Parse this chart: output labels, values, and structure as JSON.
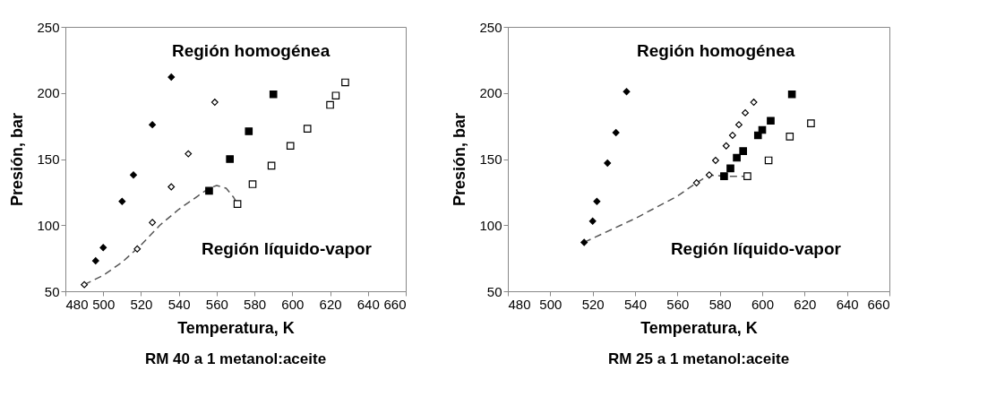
{
  "chart_data": [
    {
      "type": "scatter",
      "title": "RM 40 a 1 metanol:aceite",
      "xlabel": "Temperatura, K",
      "ylabel": "Presión, bar",
      "annotations": [
        "Región homogénea",
        "Región líquido-vapor"
      ],
      "xlim": [
        480,
        660
      ],
      "xticks": [
        480,
        500,
        520,
        540,
        560,
        580,
        600,
        620,
        640,
        660
      ],
      "ylim": [
        50,
        250
      ],
      "yticks": [
        50,
        100,
        150,
        200,
        250
      ],
      "series": [
        {
          "type": "line",
          "color": "#555555",
          "line_style": "dashed",
          "marker": "none",
          "x": [
            490,
            500,
            510,
            520,
            530,
            540,
            550,
            556,
            560,
            565,
            569,
            571
          ],
          "values": [
            55,
            62,
            72,
            85,
            100,
            112,
            122,
            128,
            130,
            128,
            121,
            116
          ]
        },
        {
          "color": "#000000",
          "marker": "diamond",
          "x": [
            496,
            500,
            510,
            516,
            526,
            536
          ],
          "values": [
            73,
            83,
            118,
            138,
            176,
            212
          ]
        },
        {
          "color": "#ffffff",
          "marker": "diamond",
          "x": [
            490,
            518,
            526,
            536,
            545,
            559
          ],
          "values": [
            55,
            82,
            102,
            129,
            154,
            193
          ]
        },
        {
          "color": "#000000",
          "marker": "square",
          "x": [
            556,
            567,
            577,
            590
          ],
          "values": [
            126,
            150,
            171,
            199
          ]
        },
        {
          "color": "#ffffff",
          "marker": "square",
          "x": [
            571,
            579,
            589,
            599,
            608,
            620,
            623,
            628
          ],
          "values": [
            116,
            131,
            145,
            160,
            173,
            191,
            198,
            208
          ]
        }
      ]
    },
    {
      "type": "scatter",
      "title": "RM 25 a 1 metanol:aceite",
      "xlabel": "Temperatura, K",
      "ylabel": "Presión, bar",
      "annotations": [
        "Región homogénea",
        "Región líquido-vapor"
      ],
      "xlim": [
        480,
        660
      ],
      "xticks": [
        480,
        500,
        520,
        540,
        560,
        580,
        600,
        620,
        640,
        660
      ],
      "ylim": [
        50,
        250
      ],
      "yticks": [
        50,
        100,
        150,
        200,
        250
      ],
      "series": [
        {
          "type": "line",
          "color": "#555555",
          "line_style": "dashed",
          "marker": "none",
          "x": [
            516,
            540,
            560,
            569,
            575,
            582,
            593
          ],
          "values": [
            87,
            105,
            122,
            132,
            138,
            137,
            137
          ]
        },
        {
          "color": "#000000",
          "marker": "diamond",
          "x": [
            516,
            520,
            522,
            527,
            531,
            536
          ],
          "values": [
            87,
            103,
            118,
            147,
            170,
            201
          ]
        },
        {
          "color": "#ffffff",
          "marker": "diamond",
          "x": [
            569,
            575,
            578,
            583,
            586,
            589,
            592,
            596
          ],
          "values": [
            132,
            138,
            149,
            160,
            168,
            176,
            185,
            193
          ]
        },
        {
          "color": "#000000",
          "marker": "square",
          "x": [
            582,
            585,
            588,
            591,
            598,
            600,
            604,
            614
          ],
          "values": [
            137,
            143,
            151,
            156,
            168,
            172,
            179,
            199
          ]
        },
        {
          "color": "#ffffff",
          "marker": "square",
          "x": [
            593,
            603,
            613,
            623
          ],
          "values": [
            137,
            149,
            167,
            177
          ]
        }
      ]
    }
  ]
}
